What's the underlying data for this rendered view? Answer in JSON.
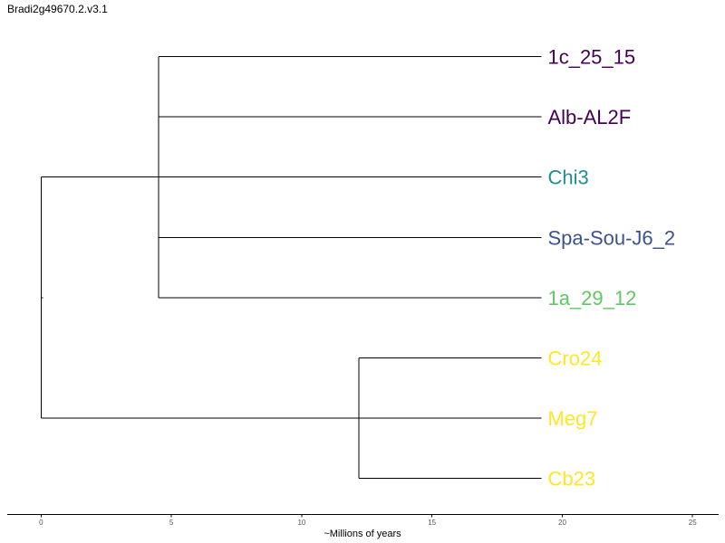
{
  "title": "Bradi2g49670.2.v3.1",
  "axis": {
    "label": "~Millions of years",
    "ticks": [
      0,
      5,
      10,
      15,
      20,
      25
    ],
    "range": [
      -1.3,
      26.0
    ]
  },
  "tree": {
    "root_x": 0,
    "tip_x": 19.2,
    "clades": [
      {
        "node_x": 4.5,
        "leaves": [
          "1c_25_15",
          "Alb-AL2F",
          "Chi3",
          "Spa-Sou-J6_2",
          "1a_29_12"
        ]
      },
      {
        "node_x": 12.2,
        "leaves": [
          "Cro24",
          "Meg7",
          "Cb23"
        ]
      }
    ]
  },
  "leaves": [
    {
      "name": "1c_25_15",
      "color": "#440154"
    },
    {
      "name": "Alb-AL2F",
      "color": "#440154"
    },
    {
      "name": "Chi3",
      "color": "#21908c"
    },
    {
      "name": "Spa-Sou-J6_2",
      "color": "#3b528b"
    },
    {
      "name": "1a_29_12",
      "color": "#5ec962"
    },
    {
      "name": "Cro24",
      "color": "#fde725"
    },
    {
      "name": "Meg7",
      "color": "#fde725"
    },
    {
      "name": "Cb23",
      "color": "#fde725"
    }
  ]
}
